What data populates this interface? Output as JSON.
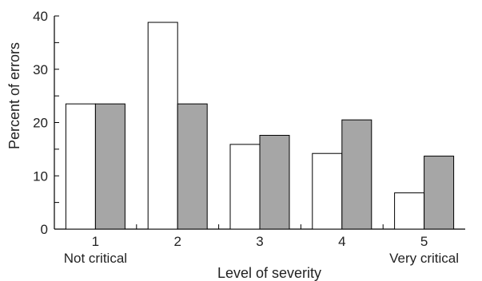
{
  "chart_data": {
    "type": "bar",
    "xlabel": "Level of severity",
    "ylabel": "Percent of errors",
    "ylim": [
      0,
      40
    ],
    "yticks": [
      0,
      10,
      20,
      30,
      40
    ],
    "categories": [
      "1",
      "2",
      "3",
      "4",
      "5"
    ],
    "category_sublabels": [
      "Not critical",
      "",
      "",
      "",
      "Very critical"
    ],
    "series": [
      {
        "values": [
          23.5,
          38.8,
          15.9,
          14.2,
          6.8
        ],
        "color": "#ffffff"
      },
      {
        "values": [
          23.5,
          23.5,
          17.6,
          20.5,
          13.7
        ],
        "color": "#a6a6a6"
      }
    ],
    "grid": false,
    "legend": "none"
  }
}
